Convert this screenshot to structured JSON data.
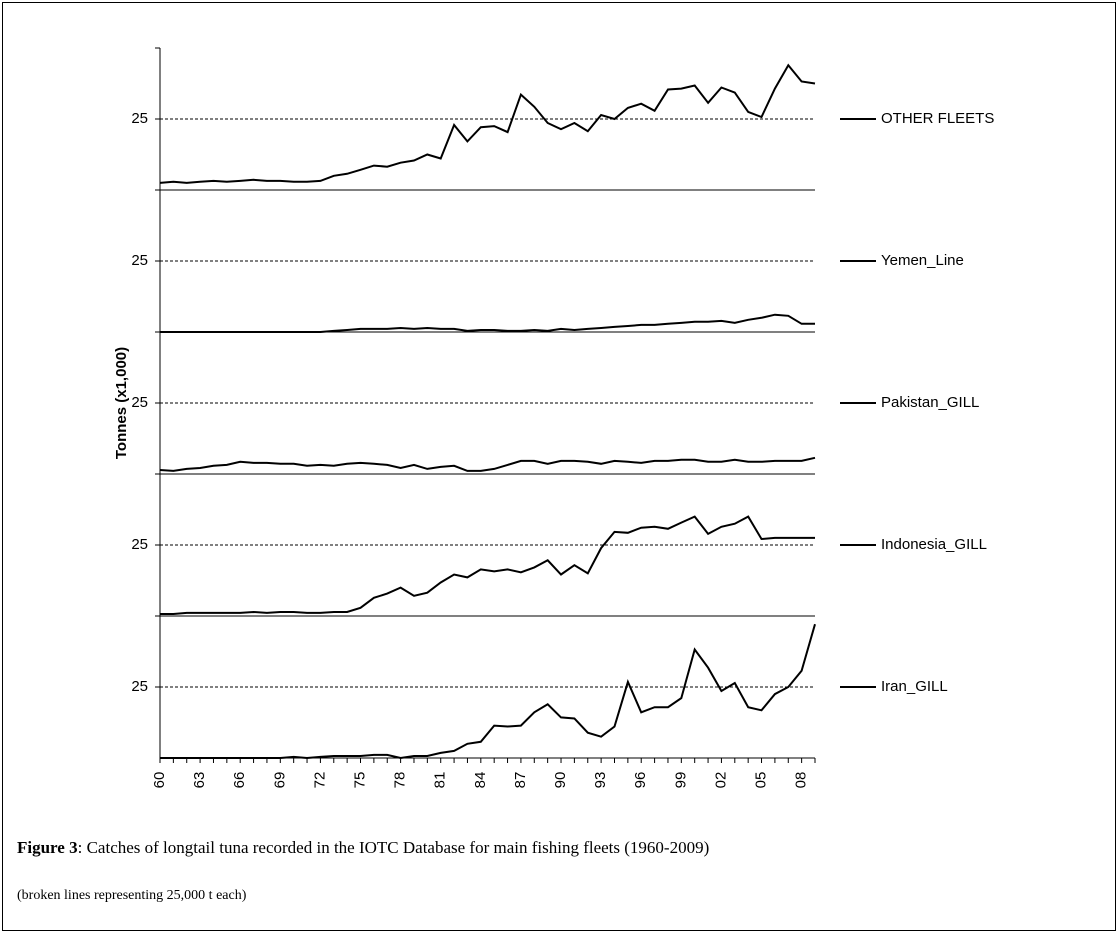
{
  "chart_data": {
    "type": "panels",
    "y_label": "Tonnes (x1,000)",
    "categories": [
      "60",
      null,
      null,
      "63",
      null,
      null,
      "66",
      null,
      null,
      "69",
      null,
      null,
      "72",
      null,
      null,
      "75",
      null,
      null,
      "78",
      null,
      null,
      "81",
      null,
      null,
      "84",
      null,
      null,
      "87",
      null,
      null,
      "90",
      null,
      null,
      "93",
      null,
      null,
      "96",
      null,
      null,
      "99",
      null,
      null,
      "02",
      null,
      null,
      "05",
      null,
      null,
      "08",
      null
    ],
    "ylim": [
      0,
      50
    ],
    "yticks": [
      25
    ],
    "grid": true,
    "series": [
      {
        "name": "OTHER FLEETS",
        "color": "#000000",
        "values": [
          2.5,
          2.9,
          2.5,
          2.9,
          3.2,
          2.9,
          3.2,
          3.6,
          3.2,
          3.2,
          2.9,
          2.9,
          3.2,
          5,
          5.7,
          7.1,
          8.6,
          8.2,
          9.6,
          10.4,
          12.5,
          11.1,
          22.9,
          17.1,
          22.1,
          22.5,
          20.4,
          33.6,
          29.3,
          23.6,
          21.4,
          23.6,
          20.7,
          26.4,
          25,
          28.9,
          30.4,
          27.9,
          35.4,
          35.7,
          36.8,
          30.7,
          36.1,
          34.3,
          27.5,
          25.7,
          35.7,
          43.9,
          38.2,
          37.5
        ]
      },
      {
        "name": "Yemen_Line",
        "color": "#000000",
        "values": [
          0,
          0,
          0,
          0,
          0,
          0,
          0,
          0,
          0,
          0,
          0,
          0,
          0,
          0.4,
          0.7,
          1.1,
          1.1,
          1.1,
          1.4,
          1.1,
          1.4,
          1.1,
          1.1,
          0.4,
          0.7,
          0.7,
          0.4,
          0.4,
          0.7,
          0.4,
          1.1,
          0.7,
          1.1,
          1.4,
          1.8,
          2.1,
          2.5,
          2.5,
          2.9,
          3.2,
          3.6,
          3.6,
          3.9,
          3.2,
          4.3,
          5,
          6.1,
          5.7,
          2.9,
          2.9
        ]
      },
      {
        "name": "Pakistan_GILL",
        "color": "#000000",
        "values": [
          1.4,
          1.1,
          1.8,
          2.1,
          2.9,
          3.2,
          4.3,
          3.9,
          3.9,
          3.6,
          3.6,
          2.9,
          3.2,
          2.9,
          3.6,
          3.9,
          3.6,
          3.2,
          2.1,
          3.2,
          1.8,
          2.5,
          2.9,
          1.1,
          1.1,
          1.8,
          3.2,
          4.6,
          4.6,
          3.6,
          4.6,
          4.6,
          4.3,
          3.6,
          4.6,
          4.3,
          3.9,
          4.6,
          4.6,
          5,
          5,
          4.3,
          4.3,
          5,
          4.3,
          4.3,
          4.6,
          4.6,
          4.6,
          5.7
        ]
      },
      {
        "name": "Indonesia_GILL",
        "color": "#000000",
        "values": [
          0.7,
          0.7,
          1.1,
          1.1,
          1.1,
          1.1,
          1.1,
          1.4,
          1.1,
          1.4,
          1.4,
          1.1,
          1.1,
          1.4,
          1.4,
          2.9,
          6.4,
          7.9,
          10,
          7.1,
          8.2,
          11.8,
          14.6,
          13.6,
          16.4,
          15.7,
          16.4,
          15.4,
          17.1,
          19.6,
          14.6,
          17.9,
          15,
          23.9,
          29.6,
          29.3,
          31.1,
          31.4,
          30.7,
          32.9,
          35,
          28.9,
          31.4,
          32.5,
          35,
          27.1,
          27.5,
          27.5,
          27.5,
          27.5
        ]
      },
      {
        "name": "Iran_GILL",
        "color": "#000000",
        "values": [
          0,
          0,
          0,
          0,
          0,
          0,
          0,
          0,
          0,
          0,
          0.4,
          0,
          0.4,
          0.7,
          0.7,
          0.7,
          1.1,
          1.1,
          0,
          0.7,
          0.7,
          1.8,
          2.5,
          5,
          5.7,
          11.4,
          11.1,
          11.4,
          16.1,
          18.9,
          14.3,
          13.9,
          8.9,
          7.5,
          11.1,
          26.8,
          16.1,
          17.9,
          17.9,
          21.1,
          38.2,
          31.8,
          23.6,
          26.4,
          17.9,
          16.8,
          22.5,
          25,
          30.7,
          47.1
        ]
      }
    ]
  },
  "caption": {
    "label": "Figure 3",
    "text": ": Catches of longtail tuna recorded in the IOTC Database for main fishing fleets (1960-2009)",
    "note": "(broken lines representing 25,000 t each)"
  }
}
